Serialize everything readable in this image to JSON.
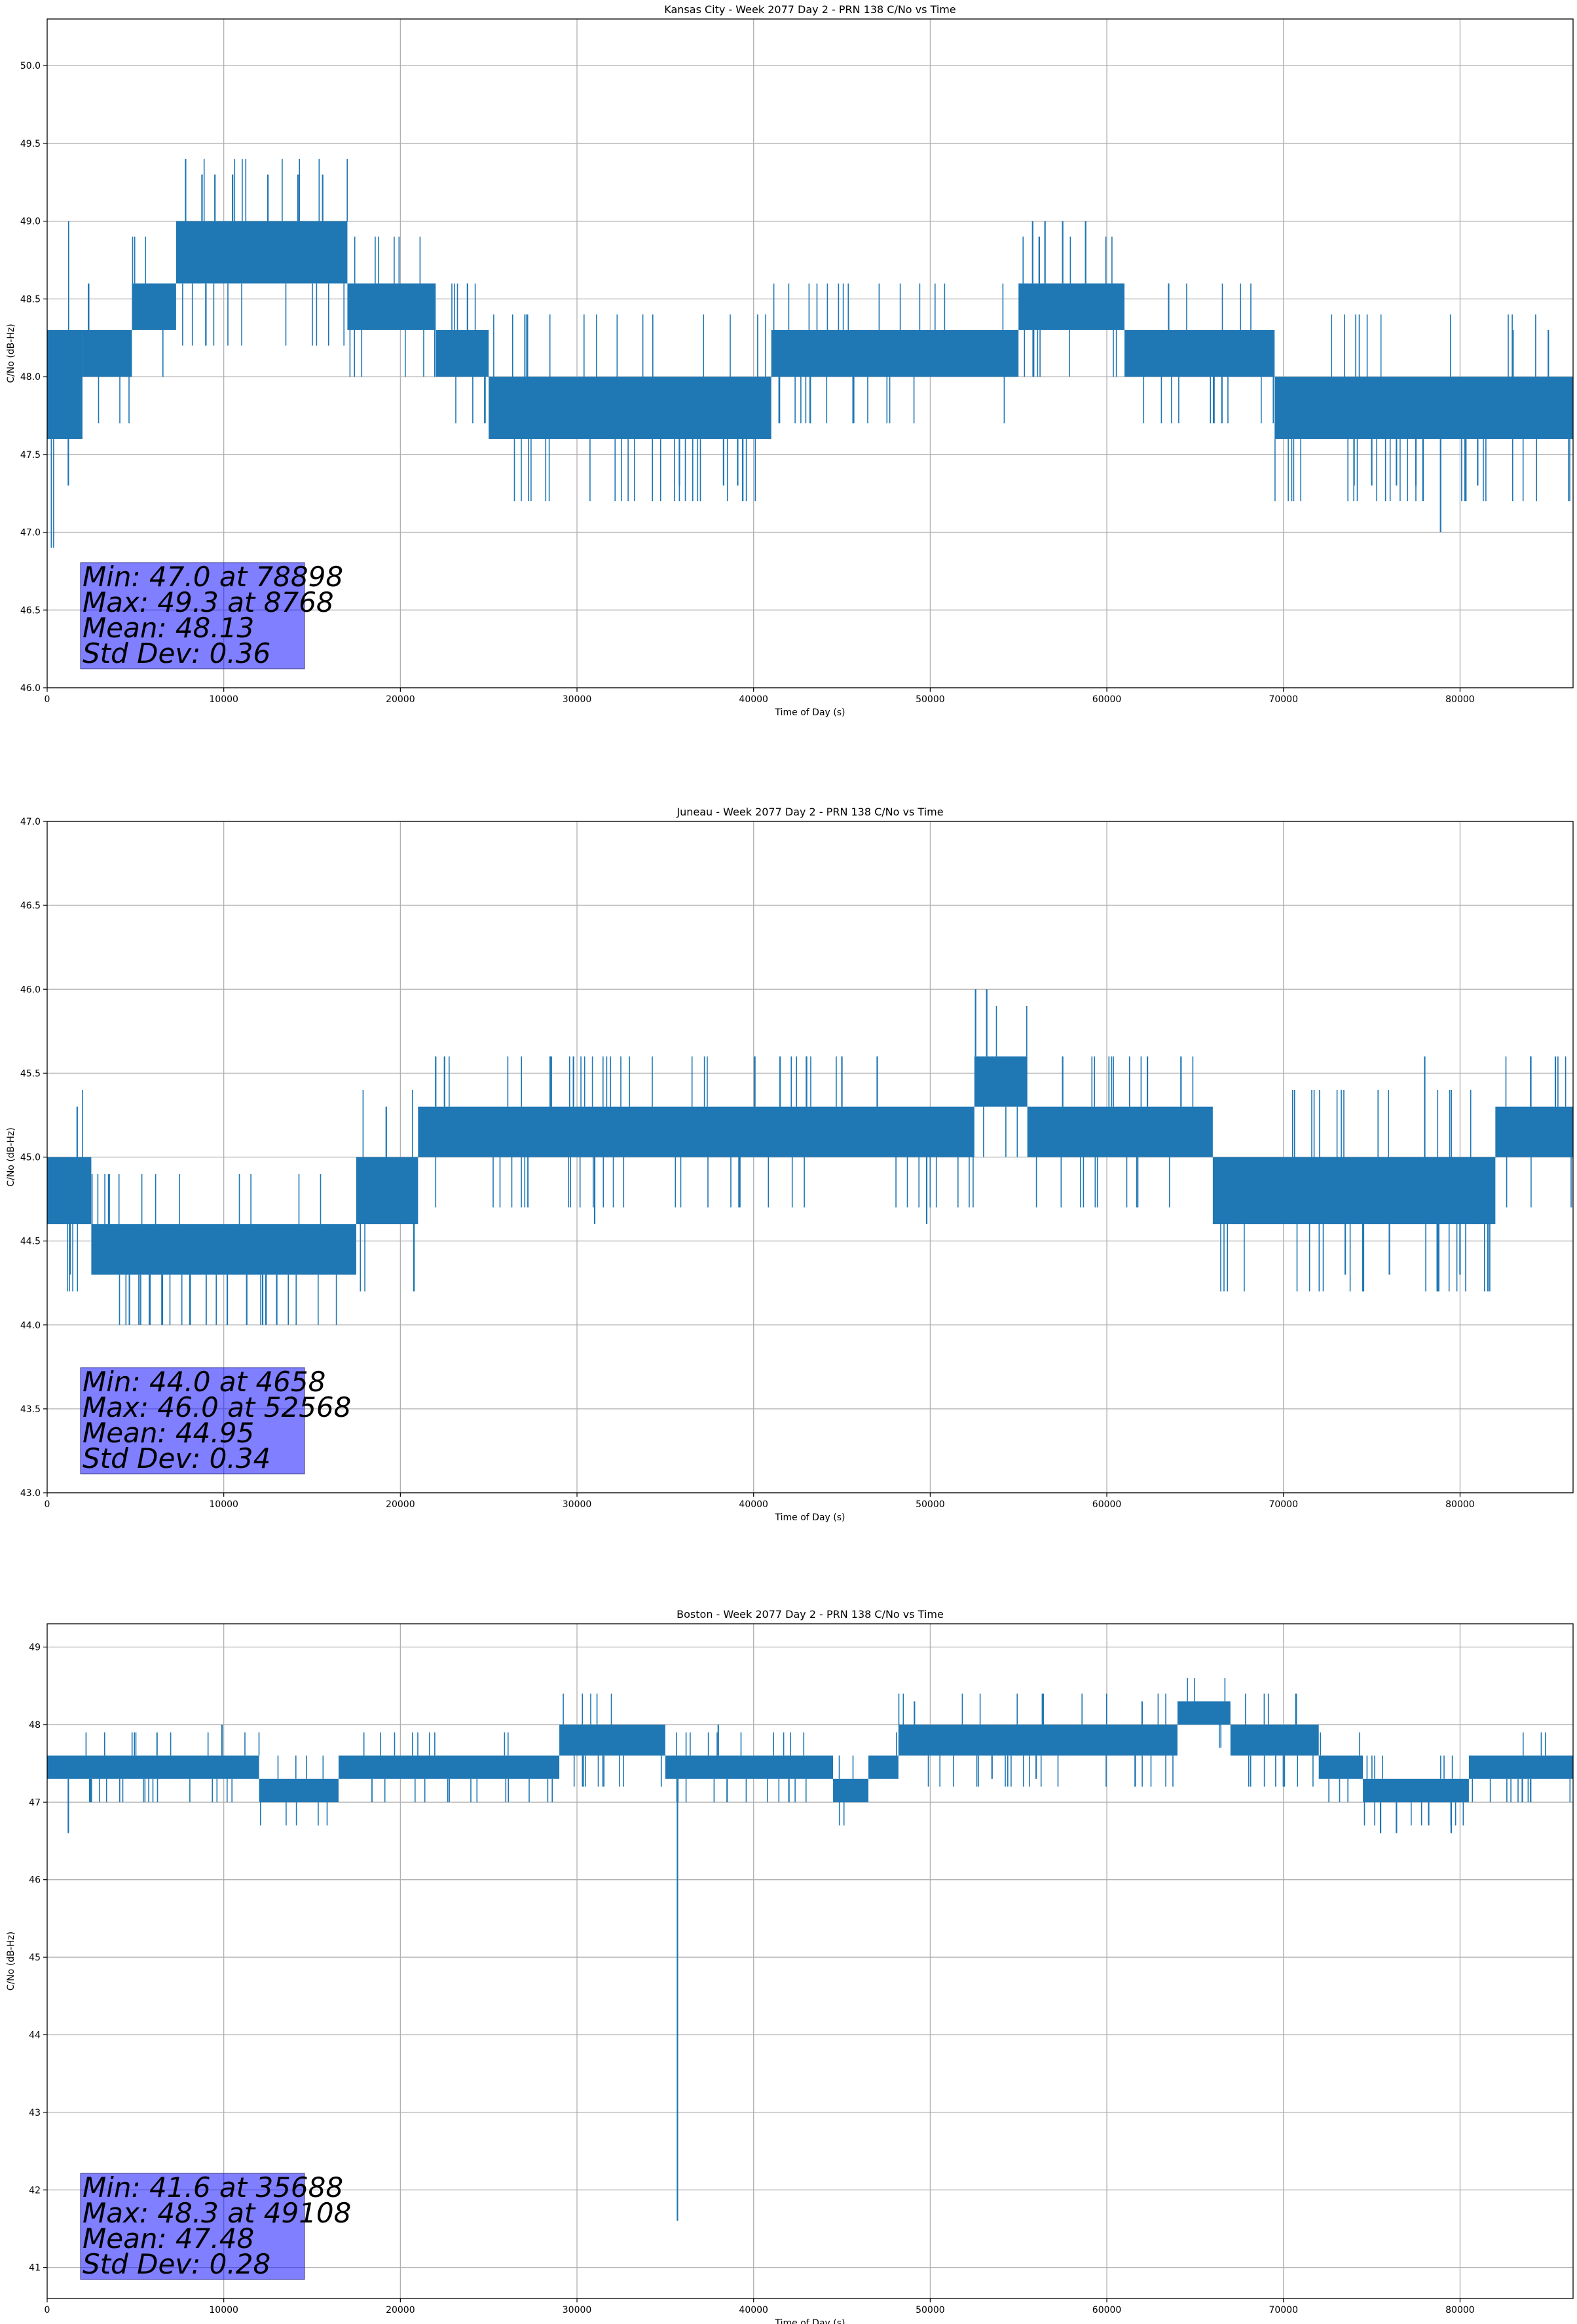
{
  "chart_data": [
    {
      "type": "line",
      "title": "Kansas City - Week 2077 Day 2 - PRN 138 C/No vs Time",
      "xlabel": "Time of Day (s)",
      "ylabel": "C/No (dB-Hz)",
      "xlim": [
        0,
        86400
      ],
      "ylim": [
        46.0,
        50.3
      ],
      "xticks": [
        0,
        10000,
        20000,
        30000,
        40000,
        50000,
        60000,
        70000,
        80000
      ],
      "yticks": [
        46.0,
        46.5,
        47.0,
        47.5,
        48.0,
        48.5,
        49.0,
        49.5,
        50.0
      ],
      "ytick_labels": [
        "46.0",
        "46.5",
        "47.0",
        "47.5",
        "48.0",
        "48.5",
        "49.0",
        "49.5",
        "50.0"
      ],
      "grid": true,
      "color": "#1f77b4",
      "series": [
        {
          "name": "C/No",
          "segments": [
            {
              "x0": 0,
              "x1": 2000,
              "lo": 47.6,
              "hi": 48.3
            },
            {
              "x0": 2000,
              "x1": 4800,
              "lo": 48.0,
              "hi": 48.3
            },
            {
              "x0": 4800,
              "x1": 7300,
              "lo": 48.3,
              "hi": 48.6
            },
            {
              "x0": 7300,
              "x1": 17000,
              "lo": 48.6,
              "hi": 49.0
            },
            {
              "x0": 17000,
              "x1": 22000,
              "lo": 48.3,
              "hi": 48.6
            },
            {
              "x0": 22000,
              "x1": 25000,
              "lo": 48.0,
              "hi": 48.3
            },
            {
              "x0": 25000,
              "x1": 41000,
              "lo": 47.6,
              "hi": 48.0
            },
            {
              "x0": 41000,
              "x1": 55000,
              "lo": 48.0,
              "hi": 48.3
            },
            {
              "x0": 55000,
              "x1": 61000,
              "lo": 48.3,
              "hi": 48.6
            },
            {
              "x0": 61000,
              "x1": 69500,
              "lo": 48.0,
              "hi": 48.3
            },
            {
              "x0": 69500,
              "x1": 86400,
              "lo": 47.6,
              "hi": 48.0
            }
          ],
          "spikes": [
            [
              1200,
              47.3
            ],
            [
              8768,
              49.3
            ],
            [
              9500,
              49.3
            ],
            [
              10500,
              49.3
            ],
            [
              12500,
              49.3
            ],
            [
              14200,
              49.3
            ],
            [
              15600,
              49.3
            ],
            [
              23800,
              48.6
            ],
            [
              35800,
              47.3
            ],
            [
              38300,
              47.3
            ],
            [
              39100,
              47.3
            ],
            [
              55800,
              49.0
            ],
            [
              56500,
              49.0
            ],
            [
              57500,
              49.0
            ],
            [
              58800,
              49.0
            ],
            [
              63500,
              48.6
            ],
            [
              67000,
              48.3
            ],
            [
              74000,
              47.3
            ],
            [
              75000,
              47.3
            ],
            [
              76400,
              47.3
            ],
            [
              77500,
              47.3
            ],
            [
              78898,
              47.0
            ],
            [
              81000,
              47.3
            ],
            [
              83000,
              48.3
            ],
            [
              85000,
              48.3
            ]
          ]
        }
      ],
      "stats": [
        "Min: 47.0 at 78898",
        "Max: 49.3 at 8768",
        "Mean: 48.13",
        "Std Dev: 0.36"
      ]
    },
    {
      "type": "line",
      "title": "Juneau - Week 2077 Day 2 - PRN 138 C/No vs Time",
      "xlabel": "Time of Day (s)",
      "ylabel": "C/No (dB-Hz)",
      "xlim": [
        0,
        86400
      ],
      "ylim": [
        43.0,
        47.0
      ],
      "xticks": [
        0,
        10000,
        20000,
        30000,
        40000,
        50000,
        60000,
        70000,
        80000
      ],
      "yticks": [
        43.0,
        43.5,
        44.0,
        44.5,
        45.0,
        45.5,
        46.0,
        46.5,
        47.0
      ],
      "ytick_labels": [
        "43.0",
        "43.5",
        "44.0",
        "44.5",
        "45.0",
        "45.5",
        "46.0",
        "46.5",
        "47.0"
      ],
      "grid": true,
      "color": "#1f77b4",
      "series": [
        {
          "name": "C/No",
          "segments": [
            {
              "x0": 0,
              "x1": 2500,
              "lo": 44.6,
              "hi": 45.0
            },
            {
              "x0": 2500,
              "x1": 17500,
              "lo": 44.3,
              "hi": 44.6
            },
            {
              "x0": 17500,
              "x1": 21000,
              "lo": 44.6,
              "hi": 45.0
            },
            {
              "x0": 21000,
              "x1": 52500,
              "lo": 45.0,
              "hi": 45.3
            },
            {
              "x0": 52500,
              "x1": 55500,
              "lo": 45.3,
              "hi": 45.6
            },
            {
              "x0": 55500,
              "x1": 66000,
              "lo": 45.0,
              "hi": 45.3
            },
            {
              "x0": 66000,
              "x1": 82000,
              "lo": 44.6,
              "hi": 45.0
            },
            {
              "x0": 82000,
              "x1": 86400,
              "lo": 45.0,
              "hi": 45.3
            }
          ],
          "spikes": [
            [
              1300,
              44.3
            ],
            [
              1700,
              45.3
            ],
            [
              4658,
              44.0
            ],
            [
              5200,
              44.0
            ],
            [
              6500,
              44.0
            ],
            [
              8100,
              44.0
            ],
            [
              10200,
              44.0
            ],
            [
              11300,
              44.0
            ],
            [
              12200,
              44.0
            ],
            [
              13000,
              44.0
            ],
            [
              19200,
              45.3
            ],
            [
              22000,
              45.6
            ],
            [
              22500,
              45.6
            ],
            [
              28500,
              45.6
            ],
            [
              29800,
              45.6
            ],
            [
              31000,
              44.6
            ],
            [
              41500,
              45.6
            ],
            [
              43000,
              45.6
            ],
            [
              45000,
              45.6
            ],
            [
              47000,
              45.6
            ],
            [
              49800,
              44.6
            ],
            [
              52568,
              46.0
            ],
            [
              53200,
              46.0
            ],
            [
              57500,
              45.6
            ],
            [
              62300,
              45.6
            ],
            [
              64200,
              45.6
            ],
            [
              73500,
              44.3
            ],
            [
              74500,
              44.3
            ],
            [
              76000,
              44.3
            ],
            [
              78000,
              45.6
            ],
            [
              80000,
              44.3
            ],
            [
              84000,
              45.6
            ],
            [
              85400,
              45.6
            ]
          ]
        }
      ],
      "stats": [
        "Min: 44.0 at 4658",
        "Max: 46.0 at 52568",
        "Mean: 44.95",
        "Std Dev: 0.34"
      ]
    },
    {
      "type": "line",
      "title": "Boston - Week 2077 Day 2 - PRN 138 C/No vs Time",
      "xlabel": "Time of Day (s)",
      "ylabel": "C/No (dB-Hz)",
      "xlim": [
        0,
        86400
      ],
      "ylim": [
        40.6,
        49.3
      ],
      "xticks": [
        0,
        10000,
        20000,
        30000,
        40000,
        50000,
        60000,
        70000,
        80000
      ],
      "yticks": [
        41,
        42,
        43,
        44,
        45,
        46,
        47,
        48,
        49
      ],
      "ytick_labels": [
        "41",
        "42",
        "43",
        "44",
        "45",
        "46",
        "47",
        "48",
        "49"
      ],
      "grid": true,
      "color": "#1f77b4",
      "series": [
        {
          "name": "C/No",
          "segments": [
            {
              "x0": 0,
              "x1": 12000,
              "lo": 47.3,
              "hi": 47.6
            },
            {
              "x0": 12000,
              "x1": 16500,
              "lo": 47.0,
              "hi": 47.3
            },
            {
              "x0": 16500,
              "x1": 29000,
              "lo": 47.3,
              "hi": 47.6
            },
            {
              "x0": 29000,
              "x1": 35000,
              "lo": 47.6,
              "hi": 48.0
            },
            {
              "x0": 35000,
              "x1": 44500,
              "lo": 47.3,
              "hi": 47.6
            },
            {
              "x0": 44500,
              "x1": 46500,
              "lo": 47.0,
              "hi": 47.3
            },
            {
              "x0": 46500,
              "x1": 48200,
              "lo": 47.3,
              "hi": 47.6
            },
            {
              "x0": 48200,
              "x1": 64000,
              "lo": 47.6,
              "hi": 48.0
            },
            {
              "x0": 64000,
              "x1": 67000,
              "lo": 48.0,
              "hi": 48.3
            },
            {
              "x0": 67000,
              "x1": 72000,
              "lo": 47.6,
              "hi": 48.0
            },
            {
              "x0": 72000,
              "x1": 74500,
              "lo": 47.3,
              "hi": 47.6
            },
            {
              "x0": 74500,
              "x1": 80500,
              "lo": 47.0,
              "hi": 47.3
            },
            {
              "x0": 80500,
              "x1": 86400,
              "lo": 47.3,
              "hi": 47.6
            }
          ],
          "spikes": [
            [
              1200,
              46.6
            ],
            [
              9900,
              48.0
            ],
            [
              35688,
              41.6
            ],
            [
              38000,
              48.0
            ],
            [
              38500,
              47.0
            ],
            [
              42000,
              47.0
            ],
            [
              49108,
              48.3
            ],
            [
              53500,
              47.3
            ],
            [
              56000,
              47.3
            ],
            [
              62000,
              48.3
            ],
            [
              75500,
              46.6
            ],
            [
              76400,
              46.6
            ],
            [
              79500,
              46.6
            ],
            [
              84000,
              47.0
            ]
          ]
        }
      ],
      "stats": [
        "Min: 41.6 at 35688",
        "Max: 48.3 at 49108",
        "Mean: 47.48",
        "Std Dev: 0.28"
      ]
    }
  ]
}
